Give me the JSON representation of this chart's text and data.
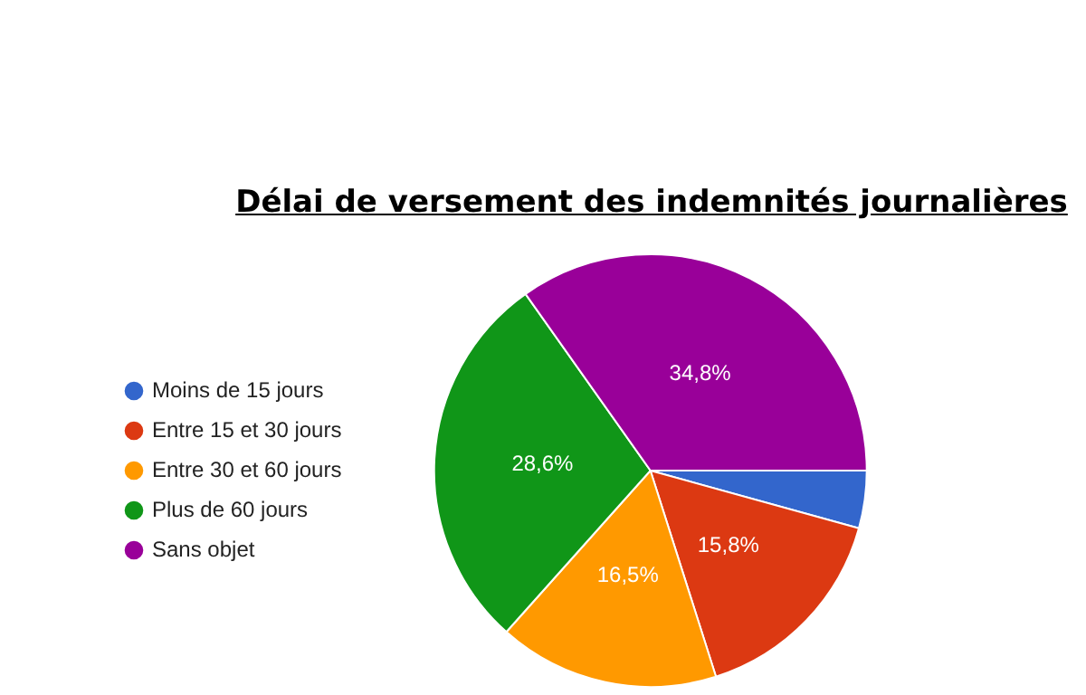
{
  "chart_data": {
    "type": "pie",
    "title": "Délai de versement des indemnités journalières",
    "categories": [
      "Moins de 15 jours",
      "Entre 15 et 30 jours",
      "Entre 30 et 60 jours",
      "Plus de 60 jours",
      "Sans objet"
    ],
    "values": [
      4.3,
      15.8,
      16.5,
      28.6,
      34.8
    ],
    "colors": [
      "#3366cc",
      "#dc3912",
      "#ff9900",
      "#109618",
      "#990099"
    ],
    "value_labels": [
      null,
      "15,8%",
      "16,5%",
      "28,6%",
      "34,8%"
    ],
    "legend": "left"
  }
}
